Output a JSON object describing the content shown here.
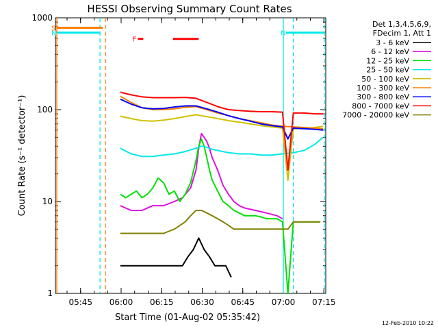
{
  "chart_data": {
    "type": "line",
    "title": "HESSI Observing Summary Count Rates",
    "xlabel": "Start Time (01-Aug-02 05:35:42)",
    "ylabel": "Count Rate (s⁻¹ detector⁻¹)",
    "x_unit": "minutes after 05:35:42",
    "xlim": [
      0,
      100
    ],
    "ylim": [
      1,
      1000
    ],
    "yscale": "log",
    "x_ticks": [
      {
        "at": 9.3,
        "label": "05:45"
      },
      {
        "at": 24.3,
        "label": "06:00"
      },
      {
        "at": 39.3,
        "label": "06:15"
      },
      {
        "at": 54.3,
        "label": "06:30"
      },
      {
        "at": 69.3,
        "label": "06:45"
      },
      {
        "at": 84.3,
        "label": "07:00"
      },
      {
        "at": 99.3,
        "label": "07:15"
      }
    ],
    "y_ticks": [
      {
        "at": 1,
        "label": "1"
      },
      {
        "at": 10,
        "label": "10"
      },
      {
        "at": 100,
        "label": "100"
      },
      {
        "at": 1000,
        "label": "1000"
      }
    ],
    "legend_header": [
      "Det 1,3,4,5,6,9,",
      "FDecim 1, Att 1"
    ],
    "legend_position": "right",
    "series": [
      {
        "name": "3 - 6 keV",
        "color": "#000000",
        "x": [
          24,
          27,
          30,
          33,
          36,
          39,
          42,
          45,
          47,
          49,
          51,
          53,
          55,
          57,
          59,
          61,
          63,
          65
        ],
        "y": [
          2,
          2,
          2,
          2,
          2,
          2,
          2,
          2,
          2,
          2.5,
          3,
          4,
          3,
          2.5,
          2,
          2,
          2,
          1.5
        ]
      },
      {
        "name": "6 - 12 keV",
        "color": "#e010e0",
        "x": [
          24,
          28,
          32,
          36,
          40,
          44,
          47,
          50,
          52,
          53,
          54,
          55,
          56,
          57,
          58,
          60,
          62,
          64,
          66,
          68,
          70,
          74,
          78,
          82,
          84
        ],
        "y": [
          9,
          8,
          8,
          9,
          9,
          10,
          11,
          14,
          22,
          38,
          55,
          50,
          45,
          38,
          30,
          22,
          15,
          12,
          10,
          9,
          8.5,
          8,
          7.5,
          7,
          6.5
        ]
      },
      {
        "name": "12 - 25 keV",
        "color": "#00e000",
        "x": [
          24,
          26,
          28,
          30,
          32,
          34,
          36,
          38,
          40,
          42,
          44,
          46,
          48,
          50,
          52,
          53,
          54,
          55,
          56,
          57,
          58,
          60,
          62,
          64,
          66,
          68,
          70,
          72,
          74,
          76,
          78,
          80,
          82,
          84,
          86,
          88,
          90,
          92,
          94,
          96,
          98
        ],
        "y": [
          12,
          11,
          12,
          13,
          11,
          12,
          14,
          18,
          16,
          12,
          13,
          10,
          12,
          16,
          28,
          40,
          48,
          40,
          30,
          22,
          17,
          13,
          10,
          9,
          8,
          7.5,
          7,
          7,
          7,
          6.8,
          6.5,
          6.5,
          6.5,
          6,
          1,
          6,
          6,
          6,
          6,
          6,
          6
        ]
      },
      {
        "name": "25 - 50 keV",
        "color": "#00e8e8",
        "x": [
          24,
          28,
          32,
          36,
          40,
          44,
          48,
          52,
          54,
          56,
          58,
          60,
          64,
          68,
          72,
          76,
          80,
          84,
          88,
          92,
          96,
          99
        ],
        "y": [
          38,
          33,
          31,
          31,
          32,
          33,
          35,
          38,
          40,
          39,
          37,
          36,
          34,
          33,
          33,
          32,
          32,
          33,
          34,
          36,
          42,
          50
        ]
      },
      {
        "name": "50 - 100 keV",
        "color": "#d0c000",
        "x": [
          24,
          28,
          32,
          36,
          40,
          44,
          48,
          52,
          54,
          56,
          60,
          64,
          68,
          72,
          76,
          80,
          84,
          86,
          88,
          92,
          96,
          99
        ],
        "y": [
          85,
          80,
          76,
          75,
          77,
          80,
          84,
          88,
          86,
          84,
          80,
          76,
          73,
          70,
          67,
          65,
          63,
          17,
          62,
          62,
          64,
          66
        ]
      },
      {
        "name": "100 - 300 keV",
        "color": "#ff7f00",
        "x": [
          24,
          28,
          32,
          36,
          40,
          44,
          48,
          52,
          56,
          60,
          64,
          68,
          72,
          76,
          80,
          84,
          88,
          92,
          96,
          99
        ],
        "y": [
          140,
          120,
          105,
          100,
          100,
          102,
          106,
          108,
          100,
          92,
          86,
          80,
          76,
          72,
          68,
          66,
          65,
          64,
          63,
          62
        ]
      },
      {
        "name": "300 - 800 keV",
        "color": "#0000ff",
        "x": [
          24,
          28,
          32,
          36,
          40,
          44,
          48,
          52,
          56,
          60,
          64,
          68,
          72,
          76,
          80,
          84,
          86,
          88,
          92,
          96,
          99
        ],
        "y": [
          130,
          115,
          105,
          102,
          103,
          107,
          110,
          110,
          102,
          94,
          86,
          80,
          75,
          70,
          67,
          65,
          48,
          63,
          62,
          61,
          60
        ]
      },
      {
        "name": "800 - 7000 keV",
        "color": "#ff0000",
        "x": [
          24,
          28,
          32,
          36,
          40,
          44,
          48,
          52,
          56,
          60,
          64,
          68,
          72,
          76,
          80,
          84,
          86,
          88,
          90,
          92,
          96,
          99
        ],
        "y": [
          155,
          145,
          138,
          135,
          135,
          135,
          136,
          133,
          120,
          108,
          100,
          98,
          96,
          95,
          95,
          94,
          22,
          92,
          92,
          92,
          90,
          90
        ]
      },
      {
        "name": "7000 - 20000 keV",
        "color": "#808000",
        "x": [
          24,
          28,
          32,
          36,
          40,
          44,
          48,
          50,
          52,
          54,
          56,
          58,
          60,
          62,
          64,
          66,
          68,
          70,
          74,
          78,
          82,
          84,
          86,
          88,
          90,
          94,
          98
        ],
        "y": [
          4.5,
          4.5,
          4.5,
          4.5,
          4.5,
          5,
          6,
          7,
          8,
          8,
          7.5,
          7,
          6.5,
          6,
          5.5,
          5,
          5,
          5,
          5,
          5,
          5,
          5,
          5,
          6,
          6,
          6,
          6
        ]
      }
    ],
    "flag_bars": [
      {
        "label": "S",
        "color": "#ff7f00",
        "x": [
          0.5,
          17.5
        ],
        "level": 780
      },
      {
        "label": "N",
        "color": "#00e8e8",
        "x": [
          0.5,
          16.5
        ],
        "level": 690
      },
      {
        "label": "N",
        "color": "#00e8e8",
        "x": [
          85.3,
          99.5
        ],
        "level": 690
      },
      {
        "label": "F",
        "color": "#ff0000",
        "x": [
          30.5,
          32.5
        ],
        "level": 590
      },
      {
        "label": "",
        "color": "#ff0000",
        "x": [
          43.5,
          53.0
        ],
        "level": 590
      }
    ],
    "vertical_markers": [
      {
        "x": 0.5,
        "color": "#ff7f00",
        "style": "solid"
      },
      {
        "x": 16.5,
        "color": "#00e8e8",
        "style": "dashed"
      },
      {
        "x": 18.5,
        "color": "#ff7f00",
        "style": "dashed"
      },
      {
        "x": 84.3,
        "color": "#00e8e8",
        "style": "solid"
      },
      {
        "x": 88.0,
        "color": "#00e8e8",
        "style": "dashed"
      },
      {
        "x": 99.5,
        "color": "#00e8e8",
        "style": "dashed"
      }
    ]
  },
  "footer": {
    "date": "12-Feb-2010 10:22"
  }
}
